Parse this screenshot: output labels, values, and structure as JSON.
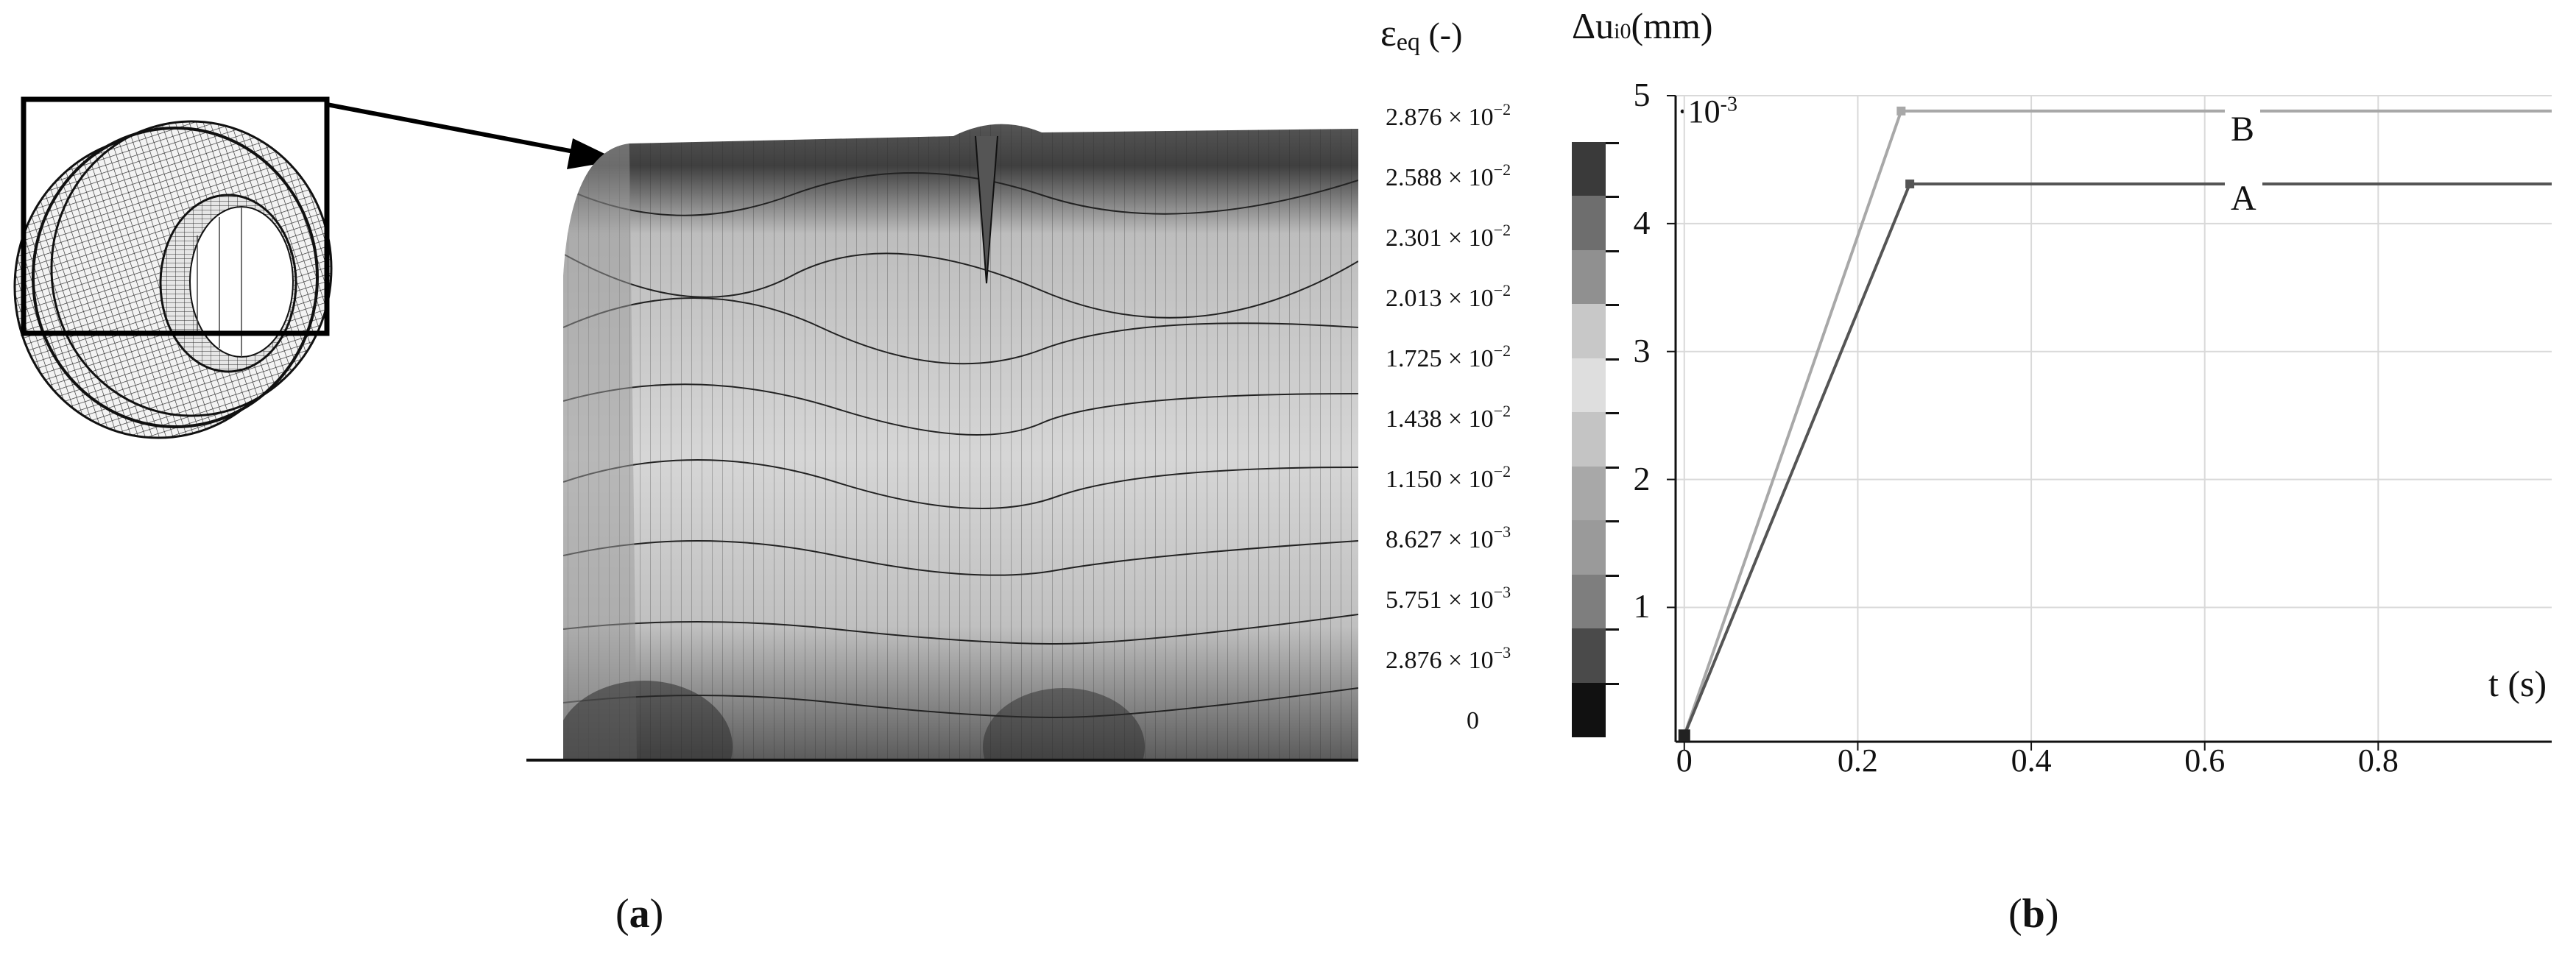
{
  "panel_a": {
    "caption_open": "(",
    "caption_letter": "a",
    "caption_close": ")",
    "legend_title": "εeq (-)",
    "legend_title_main": "ε",
    "legend_title_sub": "eq",
    "legend_title_unit": " (-)",
    "legend_labels": [
      {
        "mantissa": "2.876 × 10",
        "exp": "−2"
      },
      {
        "mantissa": "2.588 × 10",
        "exp": "−2"
      },
      {
        "mantissa": "2.301 × 10",
        "exp": "−2"
      },
      {
        "mantissa": "2.013 × 10",
        "exp": "−2"
      },
      {
        "mantissa": "1.725 × 10",
        "exp": "−2"
      },
      {
        "mantissa": "1.438 × 10",
        "exp": "−2"
      },
      {
        "mantissa": "1.150 × 10",
        "exp": "−2"
      },
      {
        "mantissa": "8.627 × 10",
        "exp": "−3"
      },
      {
        "mantissa": "5.751 × 10",
        "exp": "−3"
      },
      {
        "mantissa": "2.876 × 10",
        "exp": "−3"
      },
      {
        "mantissa": "0",
        "exp": ""
      }
    ],
    "legend_colors": [
      "#3a3a3a",
      "#6e6e6e",
      "#909090",
      "#c8c8c8",
      "#dedede",
      "#c4c4c4",
      "#a8a8a8",
      "#9a9a9a",
      "#7e7e7e",
      "#4a4a4a",
      "#111111"
    ]
  },
  "panel_b": {
    "caption_open": "(",
    "caption_letter": "b",
    "caption_close": ")",
    "ylabel": "Δui0(mm)",
    "ylabel_delta": "Δu",
    "ylabel_sub": "i0",
    "ylabel_unit": "(mm)",
    "scale_factor": "·10",
    "scale_exp": "-3",
    "xlabel": "t (s)"
  },
  "chart_data": {
    "type": "line",
    "title": "",
    "xlabel": "t (s)",
    "ylabel": "Δui0(mm)",
    "y_scale_note": "·10-3",
    "xlim": [
      -0.01,
      1.0
    ],
    "ylim": [
      -0.05,
      5.0
    ],
    "xticks": [
      "0",
      "0.2",
      "0.4",
      "0.6",
      "0.8"
    ],
    "xtick_values": [
      0,
      0.2,
      0.4,
      0.6,
      0.8
    ],
    "yticks": [
      "1",
      "2",
      "3",
      "4",
      "5"
    ],
    "ytick_values": [
      1,
      2,
      3,
      4,
      5
    ],
    "grid": true,
    "series": [
      {
        "name": "B",
        "color": "#a8a8a8",
        "x": [
          0,
          0.25,
          1.0
        ],
        "y": [
          0,
          4.88,
          4.88
        ]
      },
      {
        "name": "A",
        "color": "#555555",
        "x": [
          0,
          0.26,
          1.0
        ],
        "y": [
          0,
          4.31,
          4.31
        ]
      }
    ]
  }
}
